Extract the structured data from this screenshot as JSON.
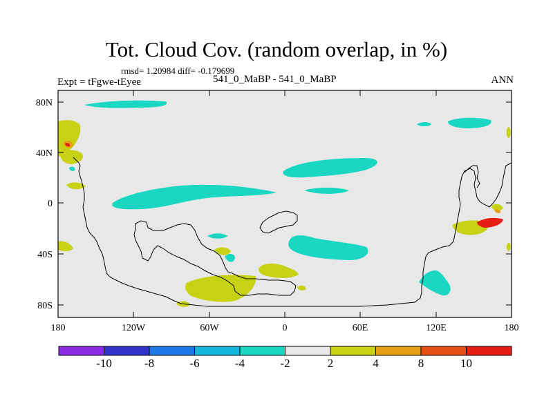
{
  "title": "Tot. Cloud Cov. (random overlap, in %)",
  "stats": {
    "rmsd_label": "rmsd= 1.20984",
    "diff_label": "diff= -0.179699"
  },
  "experiment": "Expt = tFgwe-tEyee",
  "case_label": "541_0_MaBP - 541_0_MaBP",
  "season": "ANN",
  "map": {
    "background_color": "#e8e8e8",
    "lat_ticks": [
      "80N",
      "40N",
      "0",
      "40S",
      "80S"
    ],
    "lon_ticks": [
      "180",
      "120W",
      "60W",
      "0",
      "60E",
      "120E",
      "180"
    ]
  },
  "colorbar": {
    "colors": [
      "#8a2be2",
      "#3232cd",
      "#1e78e6",
      "#14b4dc",
      "#19d7c3",
      "#e8e8e8",
      "#c8d214",
      "#e6a014",
      "#e65014",
      "#e61e14"
    ],
    "labels": [
      "-10",
      "-8",
      "-6",
      "-4",
      "-2",
      "2",
      "4",
      "8",
      "10"
    ]
  }
}
